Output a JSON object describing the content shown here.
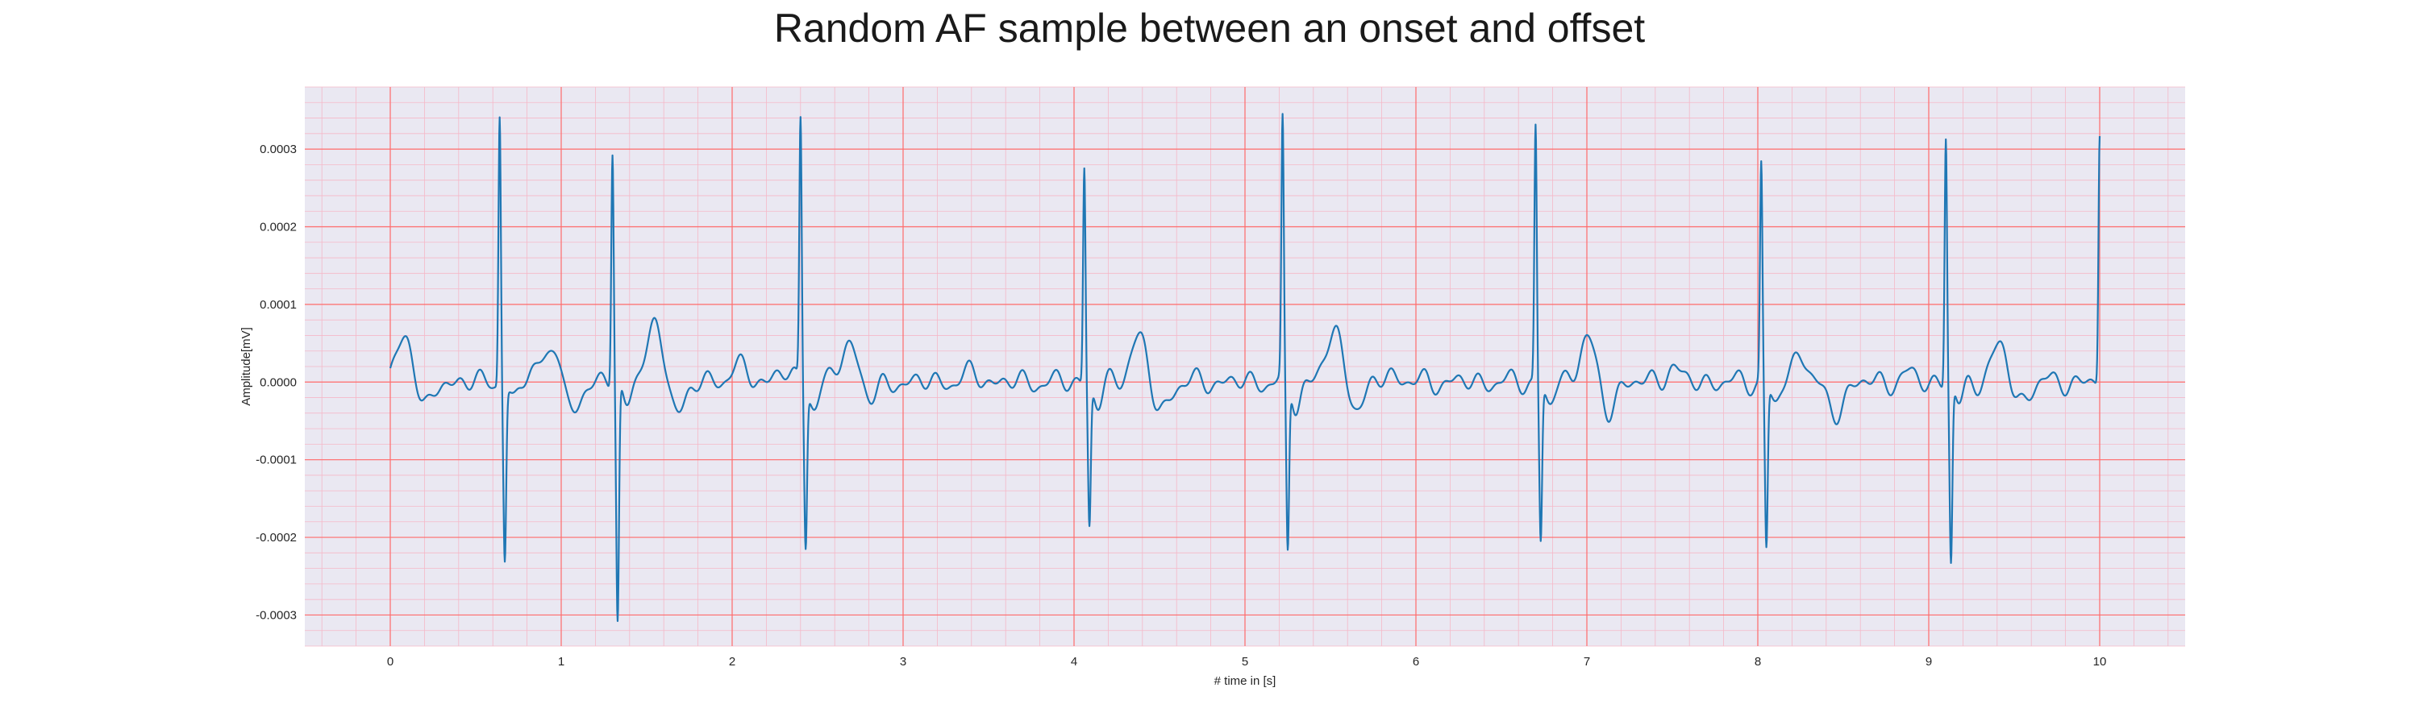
{
  "chart_data": {
    "type": "line",
    "title": "Random AF sample between an onset and offset",
    "xlabel": "# time in [s]",
    "ylabel": "Amplitude[mV]",
    "xlim": [
      -0.5,
      10.5
    ],
    "ylim": [
      -0.00034,
      0.00038
    ],
    "x_ticks": [
      0,
      1,
      2,
      3,
      4,
      5,
      6,
      7,
      8,
      9,
      10
    ],
    "x_tick_labels": [
      "0",
      "1",
      "2",
      "3",
      "4",
      "5",
      "6",
      "7",
      "8",
      "9",
      "10"
    ],
    "y_ticks": [
      -0.0003,
      -0.0002,
      -0.0001,
      0,
      0.0001,
      0.0002,
      0.0003
    ],
    "y_tick_labels": [
      "-0.0003",
      "-0.0002",
      "-0.0001",
      "0.0000",
      "0.0001",
      "0.0002",
      "0.0003"
    ],
    "grid": true,
    "minor_grid": true,
    "legend": "none",
    "colors": {
      "line": "#1f77b4",
      "plot_background": "#eae8f2",
      "major_grid": "#ff6b6b",
      "minor_grid": "#f5b8c8",
      "tick_text": "#262626"
    },
    "series": [
      {
        "beats": [
          {
            "t": 0.64,
            "r": 0.00035,
            "s": -0.00022
          },
          {
            "t": 1.3,
            "r": 0.0003,
            "s": -0.00031
          },
          {
            "t": 2.4,
            "r": 0.00034,
            "s": -0.0002
          },
          {
            "t": 4.06,
            "r": 0.00028,
            "s": -0.00018
          },
          {
            "t": 5.22,
            "r": 0.00033,
            "s": -0.00022
          },
          {
            "t": 6.7,
            "r": 0.00033,
            "s": -0.0002
          },
          {
            "t": 8.02,
            "r": 0.00028,
            "s": -0.00021
          },
          {
            "t": 9.1,
            "r": 0.00032,
            "s": -0.00023
          },
          {
            "t": 10.0,
            "r": 0.00032,
            "s": null
          }
        ],
        "waves": [
          {
            "t": 0.09,
            "a": 6.5e-05,
            "w": 0.045
          },
          {
            "t": 0.2,
            "a": -4e-05,
            "w": 0.04
          },
          {
            "t": 0.9,
            "a": 3e-05,
            "w": 0.06
          },
          {
            "t": 0.98,
            "a": 5e-05,
            "w": 0.035
          },
          {
            "t": 1.04,
            "a": -5e-05,
            "w": 0.05
          },
          {
            "t": 1.55,
            "a": 6.5e-05,
            "w": 0.06
          },
          {
            "t": 1.68,
            "a": -4e-05,
            "w": 0.05
          },
          {
            "t": 2.03,
            "a": 2e-05,
            "w": 0.05
          },
          {
            "t": 2.28,
            "a": 1.5e-05,
            "w": 0.04
          },
          {
            "t": 2.7,
            "a": 5e-05,
            "w": 0.06
          },
          {
            "t": 2.8,
            "a": -3e-05,
            "w": 0.05
          },
          {
            "t": 3.4,
            "a": 1e-05,
            "w": 0.05
          },
          {
            "t": 4.38,
            "a": 6e-05,
            "w": 0.05
          },
          {
            "t": 4.5,
            "a": -4e-05,
            "w": 0.05
          },
          {
            "t": 5.53,
            "a": 6e-05,
            "w": 0.06
          },
          {
            "t": 5.65,
            "a": -4e-05,
            "w": 0.05
          },
          {
            "t": 5.85,
            "a": 1e-05,
            "w": 0.05
          },
          {
            "t": 7.0,
            "a": 6e-05,
            "w": 0.045
          },
          {
            "t": 7.12,
            "a": -4e-05,
            "w": 0.04
          },
          {
            "t": 7.5,
            "a": 2e-05,
            "w": 0.04
          },
          {
            "t": 8.25,
            "a": 4e-05,
            "w": 0.04
          },
          {
            "t": 8.45,
            "a": -4e-05,
            "w": 0.05
          },
          {
            "t": 8.88,
            "a": 1e-05,
            "w": 0.04
          },
          {
            "t": 9.42,
            "a": 5e-05,
            "w": 0.05
          },
          {
            "t": 9.52,
            "a": -3e-05,
            "w": 0.05
          }
        ],
        "x_start": 0,
        "x_end": 10
      }
    ]
  }
}
